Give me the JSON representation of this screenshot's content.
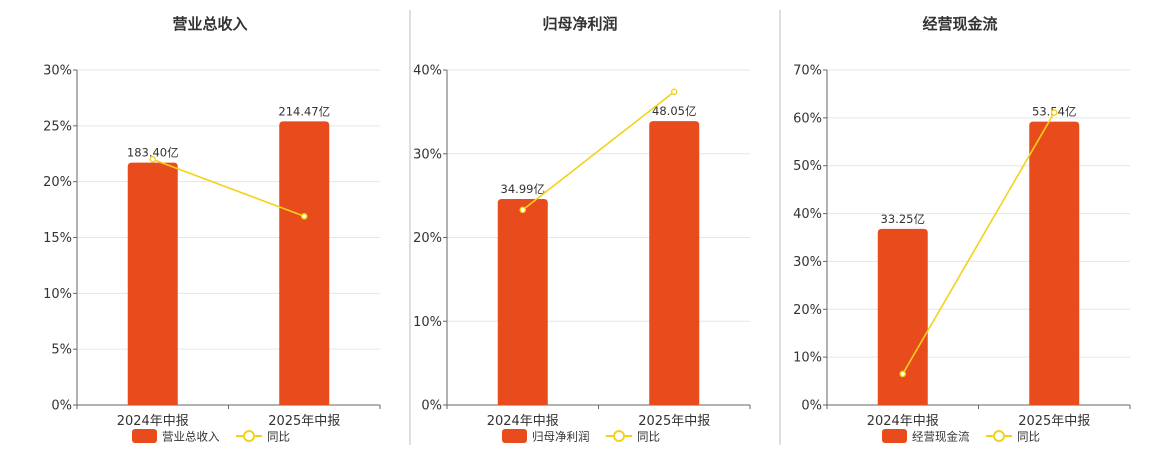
{
  "charts": [
    {
      "title": "营业总收入",
      "chart_data": {
        "type": "bar",
        "categories": [
          "2024年中报",
          "2025年中报"
        ],
        "series": [
          {
            "name": "营业总收入",
            "type": "bar",
            "values": [
              183.4,
              214.47
            ],
            "labels": [
              "183.40亿",
              "214.47亿"
            ],
            "color": "#E84B1C",
            "axis": "primary"
          },
          {
            "name": "同比",
            "type": "line",
            "values": [
              22.0,
              16.9
            ],
            "color": "#F2D21A",
            "axis": "secondary"
          }
        ],
        "y_ticks": [
          "0%",
          "5%",
          "10%",
          "15%",
          "20%",
          "25%",
          "30%"
        ],
        "y2lim": [
          0,
          30
        ],
        "bar_heights_pct": [
          21.7,
          25.4
        ],
        "legend": [
          "营业总收入",
          "同比"
        ],
        "grid": true,
        "legend_position": "bottom"
      }
    },
    {
      "title": "归母净利润",
      "chart_data": {
        "type": "bar",
        "categories": [
          "2024年中报",
          "2025年中报"
        ],
        "series": [
          {
            "name": "归母净利润",
            "type": "bar",
            "values": [
              34.99,
              48.05
            ],
            "labels": [
              "34.99亿",
              "48.05亿"
            ],
            "color": "#E84B1C",
            "axis": "primary"
          },
          {
            "name": "同比",
            "type": "line",
            "values": [
              23.3,
              37.4
            ],
            "color": "#F2D21A",
            "axis": "secondary"
          }
        ],
        "y_ticks": [
          "0%",
          "10%",
          "20%",
          "30%",
          "40%"
        ],
        "y2lim": [
          0,
          40
        ],
        "bar_heights_pct": [
          24.6,
          33.9
        ],
        "legend": [
          "归母净利润",
          "同比"
        ],
        "grid": true,
        "legend_position": "bottom"
      }
    },
    {
      "title": "经营现金流",
      "chart_data": {
        "type": "bar",
        "categories": [
          "2024年中报",
          "2025年中报"
        ],
        "series": [
          {
            "name": "经营现金流",
            "type": "bar",
            "values": [
              33.25,
              53.54
            ],
            "labels": [
              "33.25亿",
              "53.54亿"
            ],
            "color": "#E84B1C",
            "axis": "primary"
          },
          {
            "name": "同比",
            "type": "line",
            "values": [
              6.5,
              61.1
            ],
            "color": "#F2D21A",
            "axis": "secondary"
          }
        ],
        "y_ticks": [
          "0%",
          "10%",
          "20%",
          "30%",
          "40%",
          "50%",
          "60%",
          "70%"
        ],
        "y2lim": [
          0,
          70
        ],
        "bar_heights_pct": [
          36.8,
          59.2
        ],
        "legend": [
          "经营现金流",
          "同比"
        ],
        "grid": true,
        "legend_position": "bottom"
      }
    }
  ]
}
